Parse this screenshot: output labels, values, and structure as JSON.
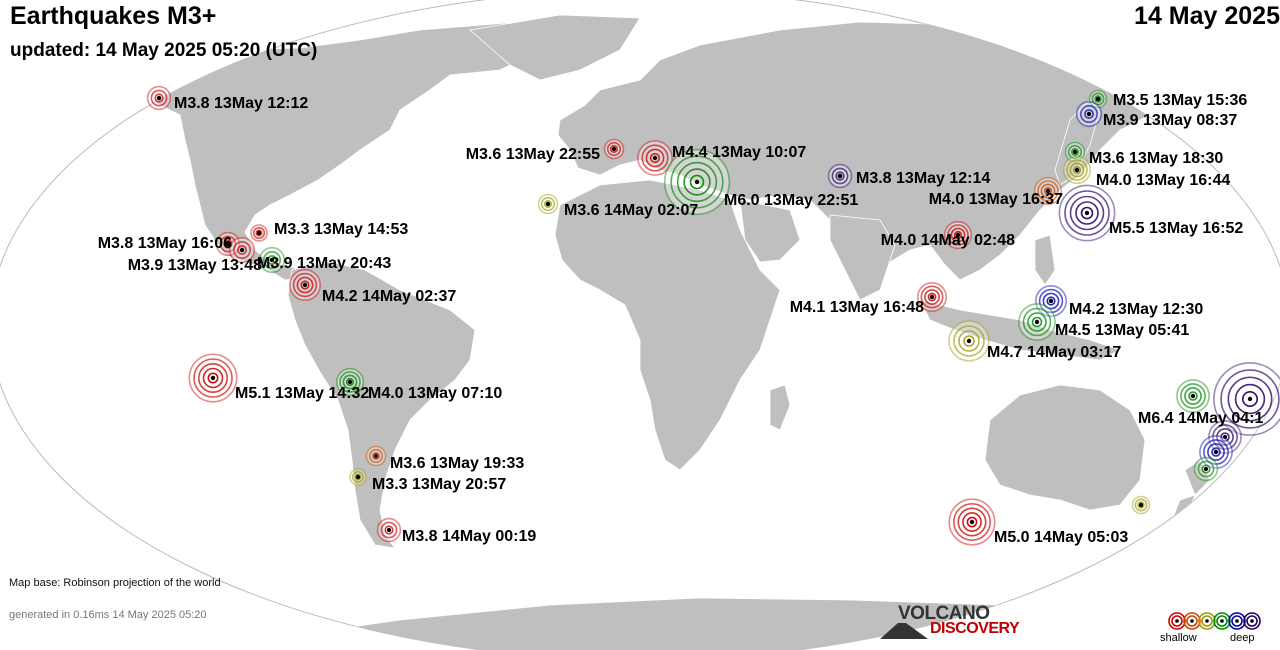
{
  "header": {
    "title": "Earthquakes M3+",
    "date": "14 May 2025",
    "updated": "updated: 14 May 2025 05:20 (UTC)"
  },
  "footer": {
    "map_base": "Map base: Robinson projection of the world",
    "generated": "generated in 0.16ms 14 May 2025 05:20"
  },
  "logo": {
    "line1": "VOLCANO",
    "line2": "DISCOVERY"
  },
  "legend": {
    "left_label": "shallow",
    "right_label": "deep"
  },
  "depth_colors": {
    "shallow": "#cc0000",
    "mid_shallow": "#cc4400",
    "intermediate": "#999900",
    "mid_deep": "#008800",
    "deep": "#0000aa",
    "very_deep": "#220066"
  },
  "earthquakes": [
    {
      "label": "M3.8 13May 12:12",
      "mag": 3.8,
      "depth": "shallow"
    },
    {
      "label": "M3.6 13May 22:55",
      "mag": 3.6,
      "depth": "shallow"
    },
    {
      "label": "M4.4 13May 10:07",
      "mag": 4.4,
      "depth": "shallow"
    },
    {
      "label": "M3.6 14May 02:07",
      "mag": 3.6,
      "depth": "intermediate"
    },
    {
      "label": "M6.0 13May 22:51",
      "mag": 6.0,
      "depth": "mid_deep"
    },
    {
      "label": "M3.8 13May 12:14",
      "mag": 3.8,
      "depth": "very_deep"
    },
    {
      "label": "M4.0 13May 16:37",
      "mag": 4.0,
      "depth": "mid_shallow"
    },
    {
      "label": "M4.0 14May 02:48",
      "mag": 4.0,
      "depth": "shallow"
    },
    {
      "label": "M3.5 13May 15:36",
      "mag": 3.5,
      "depth": "mid_deep"
    },
    {
      "label": "M3.9 13May 08:37",
      "mag": 3.9,
      "depth": "deep"
    },
    {
      "label": "M3.6 13May 18:30",
      "mag": 3.6,
      "depth": "mid_deep"
    },
    {
      "label": "M4.0 13May 16:44",
      "mag": 4.0,
      "depth": "intermediate"
    },
    {
      "label": "M5.5 13May 16:52",
      "mag": 5.5,
      "depth": "very_deep"
    },
    {
      "label": "M3.8 13May 16:06",
      "mag": 3.8,
      "depth": "shallow"
    },
    {
      "label": "M3.3 13May 14:53",
      "mag": 3.3,
      "depth": "shallow"
    },
    {
      "label": "M3.9 13May 13:48",
      "mag": 3.9,
      "depth": "shallow"
    },
    {
      "label": "M3.9 13May 20:43",
      "mag": 3.9,
      "depth": "mid_deep"
    },
    {
      "label": "M4.2 14May 02:37",
      "mag": 4.2,
      "depth": "shallow"
    },
    {
      "label": "M4.1 13May 16:48",
      "mag": 4.1,
      "depth": "shallow"
    },
    {
      "label": "M4.2 13May 12:30",
      "mag": 4.2,
      "depth": "deep"
    },
    {
      "label": "M4.5 13May 05:41",
      "mag": 4.5,
      "depth": "mid_deep"
    },
    {
      "label": "M4.7 14May 03:17",
      "mag": 4.7,
      "depth": "intermediate"
    },
    {
      "label": "M5.1 13May 14:32",
      "mag": 5.1,
      "depth": "shallow"
    },
    {
      "label": "M4.0 13May 07:10",
      "mag": 4.0,
      "depth": "mid_deep"
    },
    {
      "label": "M3.6 13May 19:33",
      "mag": 3.6,
      "depth": "mid_shallow"
    },
    {
      "label": "M3.3 13May 20:57",
      "mag": 3.3,
      "depth": "intermediate"
    },
    {
      "label": "M3.8 14May 00:19",
      "mag": 3.8,
      "depth": "shallow"
    },
    {
      "label": "M6.4 14May 04:1",
      "mag": 6.4,
      "depth": "very_deep"
    },
    {
      "label": "M5.0 14May 05:03",
      "mag": 5.0,
      "depth": "shallow"
    },
    {
      "label": "",
      "mag": 4.3,
      "depth": "mid_deep"
    },
    {
      "label": "",
      "mag": 4.3,
      "depth": "very_deep"
    },
    {
      "label": "",
      "mag": 4.3,
      "depth": "deep"
    },
    {
      "label": "",
      "mag": 3.8,
      "depth": "mid_deep"
    },
    {
      "label": "",
      "mag": 3.5,
      "depth": "intermediate"
    }
  ]
}
